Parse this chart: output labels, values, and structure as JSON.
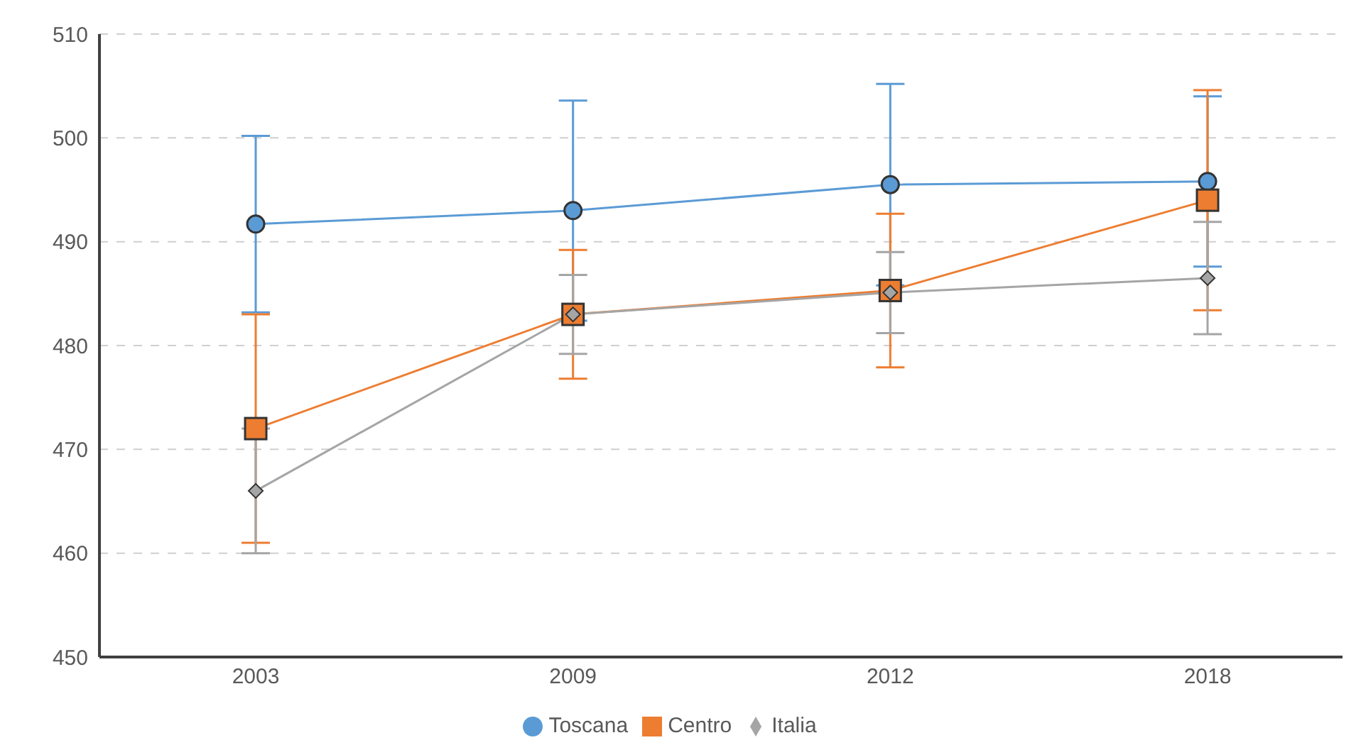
{
  "chart_data": {
    "type": "line",
    "categories": [
      "2003",
      "2009",
      "2012",
      "2018"
    ],
    "series": [
      {
        "name": "Toscana",
        "color": "#5b9bd5",
        "marker": "circle",
        "values": [
          491.7,
          493,
          495.5,
          495.8
        ],
        "errors": [
          8.5,
          10.6,
          9.7,
          8.2
        ]
      },
      {
        "name": "Centro",
        "color": "#ed7d31",
        "marker": "square",
        "values": [
          472,
          483,
          485.3,
          494
        ],
        "errors": [
          11,
          6.2,
          7.4,
          10.6
        ]
      },
      {
        "name": "Italia",
        "color": "#a5a5a5",
        "marker": "diamond",
        "values": [
          466,
          483,
          485.1,
          486.5
        ],
        "errors": [
          6,
          3.8,
          3.9,
          5.4
        ]
      }
    ],
    "ylim": [
      450,
      510
    ],
    "yticks": [
      450,
      460,
      470,
      480,
      490,
      500,
      510
    ],
    "grid": "y",
    "legend": "bottom"
  }
}
